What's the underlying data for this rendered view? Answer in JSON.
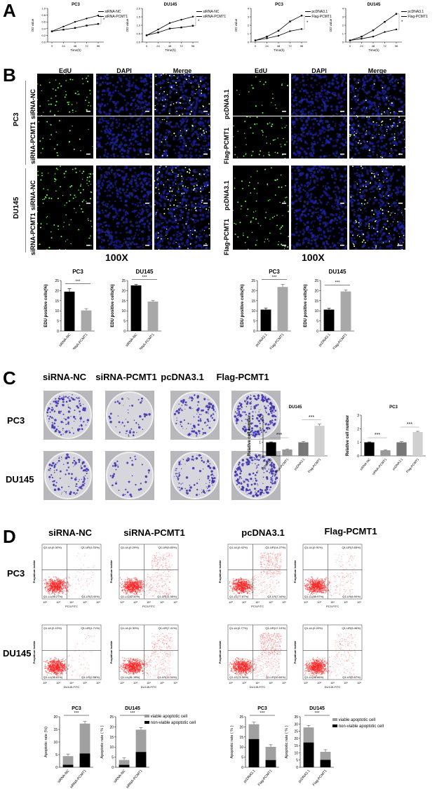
{
  "panels": {
    "A": "A",
    "B": "B",
    "C": "C",
    "D": "D"
  },
  "panel_a": {
    "charts": [
      {
        "title": "PC3",
        "xlabel": "Time(h)",
        "ylabel": "OD value",
        "legend": [
          "siRNA-NC",
          "siRNA-PCMT1"
        ],
        "sig": "*"
      },
      {
        "title": "DU145",
        "xlabel": "Time(h)",
        "ylabel": "OD value",
        "legend": [
          "siRNA-NC",
          "siRNA-PCMT1"
        ],
        "sig": "*"
      },
      {
        "title": "PC3",
        "xlabel": "Time(h)",
        "ylabel": "OD value",
        "legend": [
          "pcDNA3.1",
          "Flag-PCMT1"
        ],
        "sig": "*"
      },
      {
        "title": "DU145",
        "xlabel": "Time(h)",
        "ylabel": "OD value",
        "legend": [
          "pcDNA3.1",
          "Flag-PCMT1"
        ],
        "sig": "*"
      }
    ]
  },
  "panel_b": {
    "columns": [
      "EdU",
      "DAPI",
      "Merge"
    ],
    "left": {
      "cell_lines": [
        "PC3",
        "DU145"
      ],
      "rows": [
        "siRNA-NC",
        "siRNA-PCMT1",
        "siRNA-NC",
        "siRNA-PCMT1"
      ]
    },
    "right": {
      "rows": [
        "pcDNA3.1",
        "Flag-PCMT1",
        "pcDNA3.1",
        "Flag-PCMT1"
      ]
    },
    "magnification": "100X",
    "bar_charts": [
      {
        "title": "PC3",
        "ylabel": "EDU positive cells(%)",
        "categories": [
          "siRNA-NC",
          "siRNA-PCMT1"
        ],
        "sig": "***"
      },
      {
        "title": "DU145",
        "ylabel": "EDU positive cells(%)",
        "categories": [
          "siRNA-NC",
          "siRNA-PCMT1"
        ],
        "sig": "***"
      },
      {
        "title": "PC3",
        "ylabel": "EDU positive cells(%)",
        "categories": [
          "pcDNA3.1",
          "Flag-PCMT1"
        ],
        "sig": "***"
      },
      {
        "title": "DU145",
        "ylabel": "EDU positive cells(%)",
        "categories": [
          "pcDNA3.1",
          "Flag-PCMT1"
        ],
        "sig": "***"
      }
    ]
  },
  "panel_c": {
    "columns": [
      "siRNA-NC",
      "siRNA-PCMT1",
      "pcDNA3.1",
      "Flag-PCMT1"
    ],
    "rows": [
      "PC3",
      "DU145"
    ],
    "bar_charts": [
      {
        "title": "DU145",
        "ylabel": "Relative cell number",
        "categories": [
          "siRNA-NC",
          "siRNA-PCMT1",
          "pcDNA3.1",
          "Flag-PCMT1"
        ],
        "sig": [
          "***",
          "***"
        ]
      },
      {
        "title": "PC3",
        "ylabel": "Relative cell number",
        "categories": [
          "siRNA-NC",
          "siRNA-PCMT1",
          "pcDNA3.1",
          "Flag-PCMT1"
        ],
        "sig": [
          "***",
          "***"
        ]
      }
    ]
  },
  "panel_d": {
    "columns": [
      "siRNA-NC",
      "siRNA-PCMT1",
      "pcDNA3.1",
      "Flag-PCMT1"
    ],
    "rows": [
      "PC3",
      "DU145"
    ],
    "ylabel": "Propidium Iodide",
    "xlabels": [
      "PC3-FITC",
      "DU145-FITC"
    ],
    "quadrants": [
      {
        "UL": "Q1-UL(0.30%)",
        "UR": "Q1-UR(1.03%)",
        "LL": "Q1-LL(95.27%)",
        "LR": "Q1-LR(3.40%)"
      },
      {
        "UL": "Q1-UL(0.29%)",
        "UR": "Q1-UR(5.83%)",
        "LL": "Q1-LL(82.32%)",
        "LR": "Q1-LR(11.55%)"
      },
      {
        "UL": "Q1-UL(0.42%)",
        "UR": "Q1-UR(14.27%)",
        "LL": "Q1-LL(77.87%)",
        "LR": "Q1-LR(7.44%)"
      },
      {
        "UL": "Q1-UL(0.91%)",
        "UR": "Q1-UR(3.65%)",
        "LL": "Q1-LL(88.97%)",
        "LR": "Q1-LR(6.90%)"
      },
      {
        "UL": "Q1-UL(0.10%)",
        "UR": "Q1-UR(1.71%)",
        "LL": "Q1-LL(95.61%)",
        "LR": "Q1-LR(2.58%)"
      },
      {
        "UL": "Q1-UL(0.30%)",
        "UR": "Q1-UR(7.41%)",
        "LL": "Q1-LL(81.19%)",
        "LR": "Q1-LR(11.04%)"
      },
      {
        "UL": "Q1-UL(0.77%)",
        "UR": "Q1-UR(17.10%)",
        "LL": "Q1-LL(71.56%)",
        "LR": "Q1-LR(10.60%)"
      },
      {
        "UL": "Q1-UL(0.20%)",
        "UR": "Q1-UR(5.46%)",
        "LL": "Q1-LL(88.66%)",
        "LR": "Q1-LR(5.67%)"
      }
    ],
    "bar_charts": [
      {
        "title": "PC3",
        "ylabel": "Apoptotic rate (%)",
        "categories": [
          "siRNA-NC",
          "siRNA-PCMT1"
        ],
        "sig": "***"
      },
      {
        "title": "DU145",
        "ylabel": "Apoptotic rate ( % )",
        "categories": [
          "siRNA-NC",
          "siRNA-PCMT1"
        ],
        "sig": "***"
      },
      {
        "title": "PC3",
        "ylabel": "Apoptotic rate ( % )",
        "categories": [
          "pcDNA3.1",
          "Flag-PCMT1"
        ],
        "sig": "***"
      },
      {
        "title": "DU145",
        "ylabel": "Apoptotic rate ( % )",
        "categories": [
          "pcDNA3.1",
          "Flag-PCMT1"
        ],
        "sig": "***"
      }
    ],
    "legend": [
      "viable apoptotic cell",
      "non-viable apoptotic cell"
    ]
  },
  "chart_data": [
    {
      "type": "line",
      "title": "PC3",
      "xlabel": "Time(h)",
      "ylabel": "OD value",
      "x": [
        0,
        24,
        48,
        72,
        96
      ],
      "ylim": [
        0,
        1.0
      ],
      "series": [
        {
          "name": "siRNA-NC",
          "values": [
            0.32,
            0.46,
            0.6,
            0.7,
            0.79
          ]
        },
        {
          "name": "siRNA-PCMT1",
          "values": [
            0.32,
            0.37,
            0.42,
            0.49,
            0.54
          ]
        }
      ]
    },
    {
      "type": "line",
      "title": "DU145",
      "xlabel": "Time(h)",
      "ylabel": "OD value",
      "x": [
        0,
        24,
        48,
        72,
        96
      ],
      "ylim": [
        0,
        2.0
      ],
      "series": [
        {
          "name": "siRNA-NC",
          "values": [
            0.4,
            0.75,
            1.13,
            1.33,
            1.51
          ]
        },
        {
          "name": "siRNA-PCMT1",
          "values": [
            0.4,
            0.57,
            0.8,
            0.87,
            0.97
          ]
        }
      ]
    },
    {
      "type": "line",
      "title": "PC3",
      "xlabel": "Time(h)",
      "ylabel": "OD value",
      "x": [
        0,
        24,
        48,
        72,
        96
      ],
      "ylim": [
        0,
        4
      ],
      "series": [
        {
          "name": "pcDNA3.1",
          "values": [
            0.2,
            0.45,
            0.75,
            1.3,
            1.55
          ]
        },
        {
          "name": "Flag-PCMT1",
          "values": [
            0.2,
            0.65,
            1.35,
            2.45,
            3.15
          ]
        }
      ]
    },
    {
      "type": "line",
      "title": "DU145",
      "xlabel": "Time(h)",
      "ylabel": "OD value",
      "x": [
        0,
        24,
        48,
        72,
        96
      ],
      "ylim": [
        0,
        4
      ],
      "series": [
        {
          "name": "pcDNA3.1",
          "values": [
            0.2,
            0.4,
            0.65,
            1.2,
            1.5
          ]
        },
        {
          "name": "Flag-PCMT1",
          "values": [
            0.2,
            0.65,
            1.4,
            2.4,
            3.35
          ]
        }
      ]
    },
    {
      "type": "bar",
      "title": "PC3",
      "ylabel": "EDU positive cells(%)",
      "categories": [
        "siRNA-NC",
        "siRNA-PCMT1"
      ],
      "values": [
        19.5,
        10.2
      ],
      "errors": [
        1.5,
        0.9
      ],
      "ylim": [
        0,
        25
      ]
    },
    {
      "type": "bar",
      "title": "DU145",
      "ylabel": "EDU positive cells(%)",
      "categories": [
        "siRNA-NC",
        "siRNA-PCMT1"
      ],
      "values": [
        22.6,
        14.6
      ],
      "errors": [
        0.5,
        0.6
      ],
      "ylim": [
        0,
        25
      ]
    },
    {
      "type": "bar",
      "title": "PC3",
      "ylabel": "EDU positive cells(%)",
      "categories": [
        "pcDNA3.1",
        "Flag-PCMT1"
      ],
      "values": [
        10.6,
        21.8
      ],
      "errors": [
        0.8,
        1.3
      ],
      "ylim": [
        0,
        25
      ]
    },
    {
      "type": "bar",
      "title": "DU145",
      "ylabel": "EDU positive cells(%)",
      "categories": [
        "pcDNA3.1",
        "Flag-PCMT1"
      ],
      "values": [
        10.6,
        19.6
      ],
      "errors": [
        0.7,
        0.8
      ],
      "ylim": [
        0,
        25
      ]
    },
    {
      "type": "bar",
      "title": "DU145",
      "ylabel": "Relative cell number",
      "categories": [
        "siRNA-NC",
        "siRNA-PCMT1",
        "pcDNA3.1",
        "Flag-PCMT1"
      ],
      "values": [
        1.0,
        0.47,
        1.0,
        2.22
      ],
      "errors": [
        0.03,
        0.04,
        0.06,
        0.12
      ],
      "ylim": [
        0,
        3
      ]
    },
    {
      "type": "bar",
      "title": "PC3",
      "ylabel": "Relative cell number",
      "categories": [
        "siRNA-NC",
        "siRNA-PCMT1",
        "pcDNA3.1",
        "Flag-PCMT1"
      ],
      "values": [
        1.0,
        0.41,
        1.0,
        1.76
      ],
      "errors": [
        0.03,
        0.03,
        0.06,
        0.05
      ],
      "ylim": [
        0,
        3
      ]
    },
    {
      "type": "bar",
      "title": "PC3",
      "ylabel": "Apoptotic rate (%)",
      "categories": [
        "siRNA-NC",
        "siRNA-PCMT1"
      ],
      "ylim": [
        0,
        20
      ],
      "series": [
        {
          "name": "non-viable apoptotic cell",
          "values": [
            1.0,
            5.5
          ]
        },
        {
          "name": "viable apoptotic cell",
          "values": [
            3.4,
            11.8
          ]
        }
      ],
      "stacked": true
    },
    {
      "type": "bar",
      "title": "DU145",
      "ylabel": "Apoptotic rate ( % )",
      "categories": [
        "siRNA-NC",
        "siRNA-PCMT1"
      ],
      "ylim": [
        0,
        25
      ],
      "series": [
        {
          "name": "non-viable apoptotic cell",
          "values": [
            1.2,
            7.6
          ]
        },
        {
          "name": "viable apoptotic cell",
          "values": [
            2.4,
            11.0
          ]
        }
      ],
      "stacked": true
    },
    {
      "type": "bar",
      "title": "PC3",
      "ylabel": "Apoptotic rate ( % )",
      "categories": [
        "pcDNA3.1",
        "Flag-PCMT1"
      ],
      "ylim": [
        0,
        25
      ],
      "series": [
        {
          "name": "non-viable apoptotic cell",
          "values": [
            14.0,
            3.6
          ]
        },
        {
          "name": "viable apoptotic cell",
          "values": [
            7.3,
            6.5
          ]
        }
      ],
      "stacked": true
    },
    {
      "type": "bar",
      "title": "DU145",
      "ylabel": "Apoptotic rate ( % )",
      "categories": [
        "pcDNA3.1",
        "Flag-PCMT1"
      ],
      "ylim": [
        0,
        35
      ],
      "series": [
        {
          "name": "non-viable apoptotic cell",
          "values": [
            17.2,
            5.2
          ]
        },
        {
          "name": "viable apoptotic cell",
          "values": [
            10.4,
            5.5
          ]
        }
      ],
      "stacked": true
    }
  ]
}
